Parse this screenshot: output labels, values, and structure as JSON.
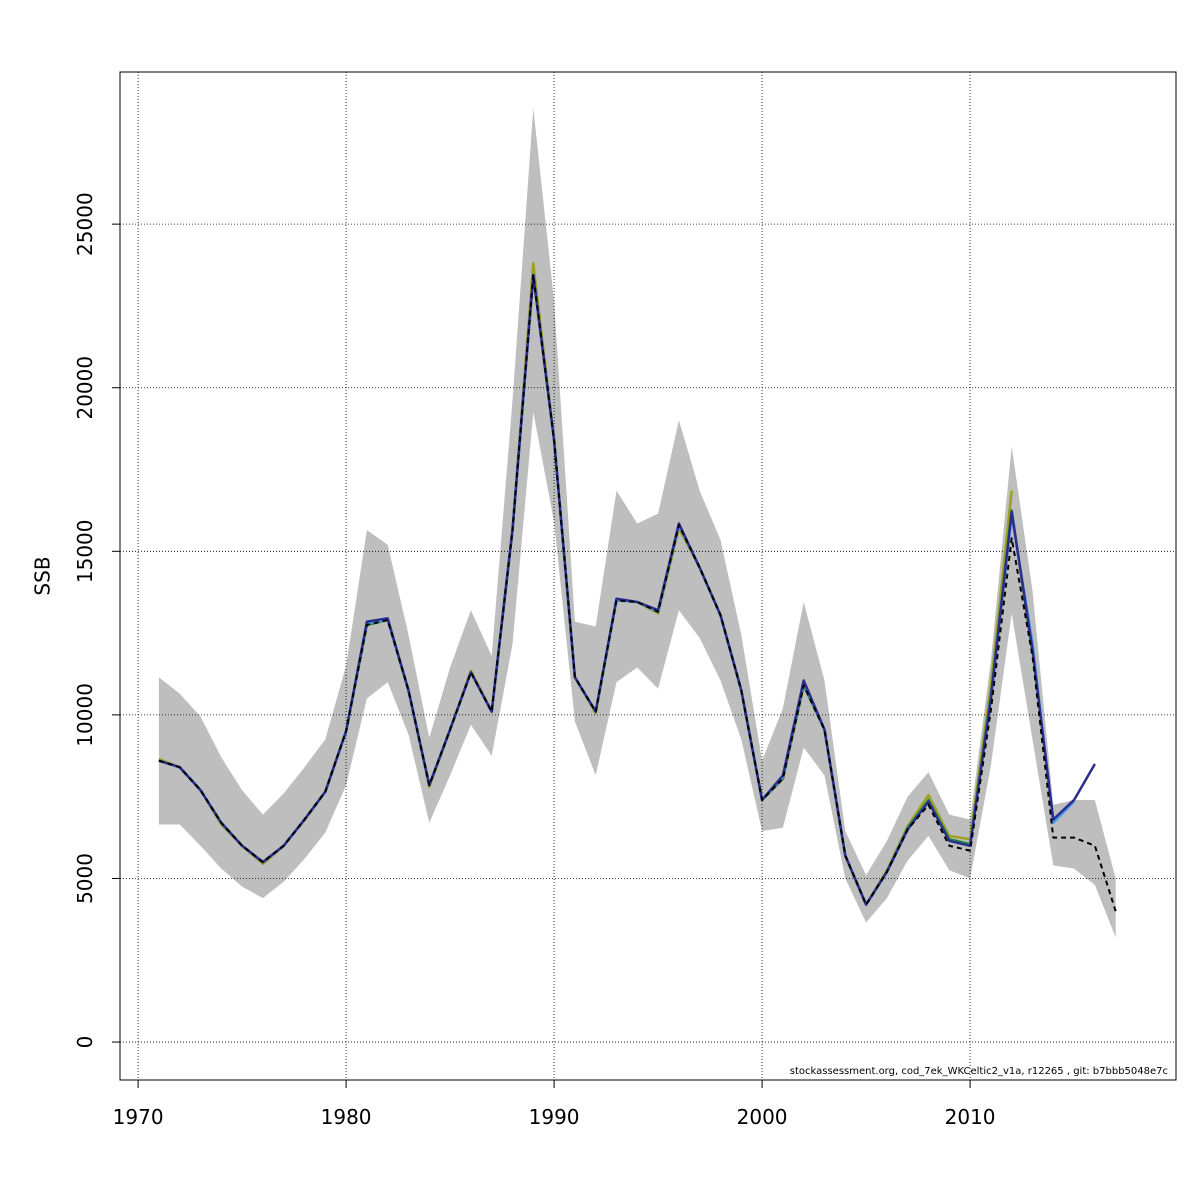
{
  "chart_data": {
    "type": "line",
    "y_label": "SSB",
    "footnote": "stockassessment.org, cod_7ek_WKCeltic2_v1a, r12265 , git: b7bbb5048e7c",
    "x": [
      1971,
      1972,
      1973,
      1974,
      1975,
      1976,
      1977,
      1978,
      1979,
      1980,
      1981,
      1982,
      1983,
      1984,
      1985,
      1986,
      1987,
      1988,
      1989,
      1990,
      1991,
      1992,
      1993,
      1994,
      1995,
      1996,
      1997,
      1998,
      1999,
      2000,
      2001,
      2002,
      2003,
      2004,
      2005,
      2006,
      2007,
      2008,
      2009,
      2010,
      2011,
      2012,
      2013,
      2014,
      2015,
      2016,
      2017
    ],
    "band": {
      "color": "#bebebe",
      "upper": [
        11150,
        10650,
        9950,
        8700,
        7700,
        6950,
        7600,
        8400,
        9250,
        11500,
        15650,
        15200,
        12450,
        9300,
        11450,
        13200,
        11800,
        19600,
        28550,
        22650,
        12850,
        12700,
        16850,
        15850,
        16150,
        19000,
        16850,
        15350,
        12450,
        8600,
        10200,
        13450,
        11050,
        6450,
        5100,
        6150,
        7500,
        8250,
        6950,
        6800,
        11650,
        18200,
        13800,
        7250,
        7400,
        7400,
        5000
      ],
      "lower": [
        6650,
        6650,
        6000,
        5300,
        4750,
        4400,
        4900,
        5600,
        6400,
        7850,
        10500,
        11000,
        9400,
        6700,
        8150,
        9700,
        8750,
        12150,
        19250,
        15900,
        9800,
        8150,
        11000,
        11450,
        10800,
        13200,
        12350,
        11050,
        9250,
        6450,
        6550,
        9000,
        8150,
        5000,
        3650,
        4400,
        5550,
        6300,
        5250,
        5000,
        8450,
        13100,
        9250,
        5400,
        5300,
        4800,
        3200
      ]
    },
    "series": [
      {
        "color": "#a0a020",
        "values": [
          8650,
          8400,
          7700,
          6650,
          6000,
          5450,
          6000,
          6800,
          7650,
          9500,
          12750,
          12900,
          10750,
          7800,
          9550,
          11350,
          10100,
          15650,
          23800,
          18400,
          11150,
          10050,
          13500,
          13450,
          13100,
          15700,
          14500,
          13050,
          10750,
          7400,
          8050,
          10950,
          9550,
          5700,
          4200,
          5250,
          6600,
          7550,
          6300,
          6200,
          10900,
          16850,
          null,
          null,
          null,
          null,
          null
        ]
      },
      {
        "color": "#1a8a3a",
        "values": [
          8600,
          8400,
          7700,
          6700,
          6000,
          5500,
          6000,
          6800,
          7650,
          9500,
          12750,
          12900,
          10750,
          7850,
          9550,
          11300,
          10100,
          15650,
          23450,
          18400,
          11150,
          10100,
          13500,
          13450,
          13150,
          15800,
          14500,
          13050,
          10750,
          7400,
          8050,
          10900,
          9550,
          5700,
          4200,
          5200,
          6550,
          7400,
          6200,
          6050,
          10600,
          16250,
          11900,
          null,
          null,
          null,
          null
        ]
      },
      {
        "color": "#4aa0f0",
        "values": [
          8600,
          8400,
          7700,
          6700,
          6000,
          5500,
          6000,
          6800,
          7650,
          9500,
          12800,
          12900,
          10750,
          7850,
          9550,
          11300,
          10100,
          15650,
          23450,
          18400,
          11150,
          10100,
          13500,
          13450,
          13150,
          15800,
          14500,
          13050,
          10750,
          7400,
          8100,
          11000,
          9550,
          5700,
          4200,
          5200,
          6500,
          7350,
          6150,
          6000,
          10500,
          16100,
          12200,
          6700,
          7350,
          null,
          null
        ]
      },
      {
        "color": "#2c2c8c",
        "values": [
          8600,
          8400,
          7700,
          6700,
          6000,
          5500,
          6000,
          6800,
          7650,
          9500,
          12850,
          12950,
          10750,
          7850,
          9550,
          11300,
          10100,
          15650,
          23450,
          18400,
          11150,
          10100,
          13550,
          13450,
          13200,
          15850,
          14500,
          13050,
          10750,
          7400,
          8150,
          11050,
          9550,
          5700,
          4200,
          5200,
          6500,
          7350,
          6150,
          6000,
          10500,
          16200,
          12000,
          6800,
          7400,
          8500,
          null
        ]
      },
      {
        "color": "#000000",
        "dash": true,
        "values": [
          8600,
          8400,
          7700,
          6700,
          6000,
          5500,
          6000,
          6800,
          7650,
          9500,
          12750,
          12900,
          10750,
          7850,
          9550,
          11300,
          10100,
          15650,
          23450,
          18400,
          11150,
          10100,
          13500,
          13450,
          13150,
          15800,
          14500,
          13050,
          10750,
          7400,
          8050,
          10900,
          9550,
          5700,
          4200,
          5200,
          6500,
          7250,
          6000,
          5850,
          10150,
          15400,
          11800,
          6250,
          6250,
          6000,
          4000
        ]
      }
    ],
    "xlim": [
      1969.13,
      2019.9
    ],
    "xticks": [
      1970,
      1980,
      1990,
      2000,
      2010
    ],
    "ylim": [
      -1160,
      29650
    ],
    "yticks": [
      0,
      5000,
      10000,
      15000,
      20000,
      25000
    ],
    "grid": true
  }
}
